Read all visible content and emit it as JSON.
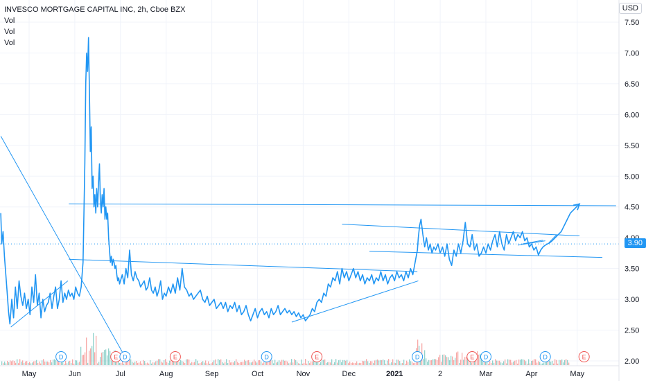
{
  "legend": {
    "title": "INVESCO MORTGAGE CAPITAL INC, 2h, Cboe BZX",
    "lines": [
      "Vol",
      "Vol",
      "Vol"
    ]
  },
  "currency": "USD",
  "last_price": "3.90",
  "colors": {
    "price_line": "#2196f3",
    "drawing_line": "#2196f3",
    "vol_up": "#26a69a",
    "vol_down": "#ef5350",
    "div_marker": "#2196f3",
    "earn_marker": "#ef5350",
    "grid": "#f0f3fa",
    "axis_text": "#131722"
  },
  "chart_data": {
    "type": "line",
    "ylim": [
      2.0,
      7.5
    ],
    "yticks": [
      "7.50",
      "7.00",
      "6.50",
      "6.00",
      "5.50",
      "5.00",
      "4.50",
      "4.00",
      "3.50",
      "3.00",
      "2.50",
      "2.00"
    ],
    "xticks": [
      {
        "label": "May",
        "t": 0.0
      },
      {
        "label": "Jun",
        "t": 1.0
      },
      {
        "label": "Jul",
        "t": 2.0
      },
      {
        "label": "Aug",
        "t": 3.0
      },
      {
        "label": "Sep",
        "t": 4.0
      },
      {
        "label": "Oct",
        "t": 5.0
      },
      {
        "label": "Nov",
        "t": 6.0
      },
      {
        "label": "Dec",
        "t": 7.0
      },
      {
        "label": "2021",
        "t": 8.0
      },
      {
        "label": "2",
        "t": 9.0
      },
      {
        "label": "Mar",
        "t": 10.0
      },
      {
        "label": "Apr",
        "t": 11.0
      },
      {
        "label": "May",
        "t": 12.0
      }
    ],
    "series": [
      {
        "points": [
          [
            -0.62,
            4.4
          ],
          [
            -0.6,
            3.9
          ],
          [
            -0.57,
            4.1
          ],
          [
            -0.54,
            3.7
          ],
          [
            -0.51,
            3.4
          ],
          [
            -0.48,
            3.1
          ],
          [
            -0.45,
            2.8
          ],
          [
            -0.42,
            2.6
          ],
          [
            -0.38,
            3.0
          ],
          [
            -0.34,
            2.7
          ],
          [
            -0.3,
            3.2
          ],
          [
            -0.26,
            2.85
          ],
          [
            -0.22,
            3.3
          ],
          [
            -0.18,
            3.05
          ],
          [
            -0.14,
            2.9
          ],
          [
            -0.1,
            3.1
          ],
          [
            -0.06,
            2.85
          ],
          [
            -0.02,
            3.0
          ],
          [
            0.02,
            2.75
          ],
          [
            0.06,
            3.2
          ],
          [
            0.1,
            2.95
          ],
          [
            0.14,
            3.4
          ],
          [
            0.18,
            2.9
          ],
          [
            0.22,
            3.1
          ],
          [
            0.26,
            2.7
          ],
          [
            0.3,
            3.0
          ],
          [
            0.34,
            2.8
          ],
          [
            0.38,
            2.9
          ],
          [
            0.42,
            2.95
          ],
          [
            0.46,
            3.1
          ],
          [
            0.5,
            2.85
          ],
          [
            0.54,
            3.05
          ],
          [
            0.58,
            3.2
          ],
          [
            0.62,
            2.85
          ],
          [
            0.66,
            3.0
          ],
          [
            0.7,
            3.3
          ],
          [
            0.74,
            2.95
          ],
          [
            0.78,
            3.1
          ],
          [
            0.82,
            3.0
          ],
          [
            0.86,
            3.15
          ],
          [
            0.9,
            3.05
          ],
          [
            0.94,
            3.1
          ],
          [
            0.98,
            3.0
          ],
          [
            1.02,
            3.2
          ],
          [
            1.06,
            3.1
          ],
          [
            1.1,
            3.05
          ],
          [
            1.14,
            3.2
          ],
          [
            1.18,
            3.6
          ],
          [
            1.2,
            4.4
          ],
          [
            1.22,
            5.2
          ],
          [
            1.24,
            6.5
          ],
          [
            1.26,
            7.0
          ],
          [
            1.28,
            6.7
          ],
          [
            1.3,
            7.25
          ],
          [
            1.32,
            6.4
          ],
          [
            1.34,
            5.4
          ],
          [
            1.36,
            5.8
          ],
          [
            1.38,
            4.8
          ],
          [
            1.4,
            5.0
          ],
          [
            1.42,
            4.5
          ],
          [
            1.44,
            4.7
          ],
          [
            1.46,
            4.4
          ],
          [
            1.48,
            4.8
          ],
          [
            1.5,
            4.5
          ],
          [
            1.52,
            4.9
          ],
          [
            1.54,
            5.2
          ],
          [
            1.56,
            4.6
          ],
          [
            1.58,
            4.4
          ],
          [
            1.6,
            4.7
          ],
          [
            1.62,
            4.5
          ],
          [
            1.64,
            4.8
          ],
          [
            1.66,
            4.3
          ],
          [
            1.68,
            4.5
          ],
          [
            1.7,
            4.3
          ],
          [
            1.72,
            4.4
          ],
          [
            1.74,
            4.0
          ],
          [
            1.76,
            3.8
          ],
          [
            1.78,
            3.6
          ],
          [
            1.8,
            3.7
          ],
          [
            1.82,
            3.55
          ],
          [
            1.84,
            3.65
          ],
          [
            1.86,
            3.6
          ],
          [
            1.88,
            3.5
          ],
          [
            1.9,
            3.55
          ],
          [
            1.92,
            3.4
          ],
          [
            1.94,
            3.3
          ],
          [
            1.96,
            3.35
          ],
          [
            1.98,
            3.25
          ],
          [
            2.0,
            3.3
          ],
          [
            2.04,
            3.4
          ],
          [
            2.08,
            3.25
          ],
          [
            2.12,
            3.5
          ],
          [
            2.16,
            3.35
          ],
          [
            2.2,
            3.8
          ],
          [
            2.24,
            3.4
          ],
          [
            2.28,
            3.3
          ],
          [
            2.32,
            3.45
          ],
          [
            2.36,
            3.35
          ],
          [
            2.4,
            3.3
          ],
          [
            2.44,
            3.2
          ],
          [
            2.48,
            3.25
          ],
          [
            2.52,
            3.3
          ],
          [
            2.56,
            3.15
          ],
          [
            2.6,
            3.2
          ],
          [
            2.64,
            3.35
          ],
          [
            2.68,
            3.15
          ],
          [
            2.72,
            3.1
          ],
          [
            2.76,
            3.2
          ],
          [
            2.8,
            3.05
          ],
          [
            2.84,
            3.15
          ],
          [
            2.88,
            3.3
          ],
          [
            2.92,
            3.0
          ],
          [
            2.96,
            3.1
          ],
          [
            3.0,
            3.05
          ],
          [
            3.05,
            3.2
          ],
          [
            3.1,
            3.1
          ],
          [
            3.15,
            3.25
          ],
          [
            3.2,
            3.1
          ],
          [
            3.25,
            3.35
          ],
          [
            3.3,
            3.15
          ],
          [
            3.35,
            3.5
          ],
          [
            3.4,
            3.2
          ],
          [
            3.45,
            3.15
          ],
          [
            3.5,
            3.05
          ],
          [
            3.55,
            3.1
          ],
          [
            3.6,
            3.0
          ],
          [
            3.65,
            3.05
          ],
          [
            3.7,
            3.1
          ],
          [
            3.75,
            3.15
          ],
          [
            3.8,
            3.0
          ],
          [
            3.85,
            2.95
          ],
          [
            3.9,
            3.05
          ],
          [
            3.95,
            2.9
          ],
          [
            4.0,
            2.95
          ],
          [
            4.05,
            3.0
          ],
          [
            4.1,
            2.85
          ],
          [
            4.15,
            2.9
          ],
          [
            4.2,
            2.95
          ],
          [
            4.25,
            2.85
          ],
          [
            4.3,
            2.95
          ],
          [
            4.35,
            2.8
          ],
          [
            4.4,
            2.9
          ],
          [
            4.45,
            2.85
          ],
          [
            4.5,
            2.95
          ],
          [
            4.55,
            2.8
          ],
          [
            4.6,
            2.9
          ],
          [
            4.65,
            2.75
          ],
          [
            4.7,
            2.8
          ],
          [
            4.75,
            2.9
          ],
          [
            4.8,
            2.75
          ],
          [
            4.85,
            2.65
          ],
          [
            4.9,
            2.75
          ],
          [
            4.95,
            2.85
          ],
          [
            5.0,
            2.7
          ],
          [
            5.05,
            2.8
          ],
          [
            5.1,
            2.85
          ],
          [
            5.15,
            2.75
          ],
          [
            5.2,
            2.8
          ],
          [
            5.25,
            2.7
          ],
          [
            5.3,
            2.85
          ],
          [
            5.35,
            2.75
          ],
          [
            5.4,
            2.8
          ],
          [
            5.45,
            2.9
          ],
          [
            5.5,
            2.75
          ],
          [
            5.55,
            2.8
          ],
          [
            5.6,
            2.85
          ],
          [
            5.65,
            2.78
          ],
          [
            5.7,
            2.82
          ],
          [
            5.75,
            2.75
          ],
          [
            5.8,
            2.8
          ],
          [
            5.85,
            2.72
          ],
          [
            5.9,
            2.78
          ],
          [
            5.95,
            2.7
          ],
          [
            6.0,
            2.75
          ],
          [
            6.05,
            2.65
          ],
          [
            6.1,
            2.7
          ],
          [
            6.15,
            2.75
          ],
          [
            6.2,
            2.85
          ],
          [
            6.25,
            2.8
          ],
          [
            6.3,
            2.95
          ],
          [
            6.35,
            3.0
          ],
          [
            6.4,
            2.95
          ],
          [
            6.45,
            3.1
          ],
          [
            6.5,
            3.05
          ],
          [
            6.55,
            3.25
          ],
          [
            6.6,
            3.2
          ],
          [
            6.65,
            3.35
          ],
          [
            6.7,
            3.3
          ],
          [
            6.75,
            3.45
          ],
          [
            6.8,
            3.25
          ],
          [
            6.85,
            3.5
          ],
          [
            6.9,
            3.35
          ],
          [
            6.95,
            3.45
          ],
          [
            7.0,
            3.3
          ],
          [
            7.05,
            3.4
          ],
          [
            7.1,
            3.5
          ],
          [
            7.15,
            3.35
          ],
          [
            7.2,
            3.45
          ],
          [
            7.25,
            3.3
          ],
          [
            7.3,
            3.4
          ],
          [
            7.35,
            3.25
          ],
          [
            7.4,
            3.35
          ],
          [
            7.45,
            3.3
          ],
          [
            7.5,
            3.4
          ],
          [
            7.55,
            3.25
          ],
          [
            7.6,
            3.35
          ],
          [
            7.65,
            3.3
          ],
          [
            7.7,
            3.45
          ],
          [
            7.75,
            3.3
          ],
          [
            7.8,
            3.4
          ],
          [
            7.85,
            3.25
          ],
          [
            7.9,
            3.35
          ],
          [
            7.95,
            3.4
          ],
          [
            8.0,
            3.3
          ],
          [
            8.05,
            3.45
          ],
          [
            8.1,
            3.35
          ],
          [
            8.15,
            3.4
          ],
          [
            8.2,
            3.3
          ],
          [
            8.25,
            3.45
          ],
          [
            8.3,
            3.35
          ],
          [
            8.35,
            3.5
          ],
          [
            8.4,
            3.4
          ],
          [
            8.45,
            3.6
          ],
          [
            8.5,
            3.8
          ],
          [
            8.52,
            4.0
          ],
          [
            8.55,
            4.2
          ],
          [
            8.58,
            4.3
          ],
          [
            8.62,
            4.05
          ],
          [
            8.66,
            3.85
          ],
          [
            8.7,
            4.0
          ],
          [
            8.74,
            3.8
          ],
          [
            8.78,
            3.9
          ],
          [
            8.82,
            3.75
          ],
          [
            8.86,
            3.85
          ],
          [
            8.9,
            3.8
          ],
          [
            8.95,
            3.9
          ],
          [
            9.0,
            3.75
          ],
          [
            9.05,
            3.85
          ],
          [
            9.1,
            3.7
          ],
          [
            9.15,
            3.9
          ],
          [
            9.2,
            3.65
          ],
          [
            9.25,
            3.55
          ],
          [
            9.3,
            3.8
          ],
          [
            9.35,
            3.7
          ],
          [
            9.4,
            3.9
          ],
          [
            9.45,
            3.75
          ],
          [
            9.5,
            3.95
          ],
          [
            9.55,
            4.25
          ],
          [
            9.6,
            3.9
          ],
          [
            9.65,
            3.85
          ],
          [
            9.7,
            4.05
          ],
          [
            9.75,
            3.8
          ],
          [
            9.8,
            3.9
          ],
          [
            9.85,
            3.7
          ],
          [
            9.9,
            3.75
          ],
          [
            9.95,
            3.85
          ],
          [
            10.0,
            3.75
          ],
          [
            10.05,
            3.9
          ],
          [
            10.1,
            3.8
          ],
          [
            10.15,
            3.95
          ],
          [
            10.2,
            4.05
          ],
          [
            10.25,
            3.85
          ],
          [
            10.3,
            4.1
          ],
          [
            10.35,
            3.9
          ],
          [
            10.4,
            3.8
          ],
          [
            10.45,
            4.05
          ],
          [
            10.5,
            3.9
          ],
          [
            10.55,
            4.0
          ],
          [
            10.6,
            4.1
          ],
          [
            10.65,
            3.95
          ],
          [
            10.7,
            4.05
          ],
          [
            10.75,
            4.0
          ],
          [
            10.8,
            4.1
          ],
          [
            10.85,
            3.95
          ],
          [
            10.9,
            4.0
          ],
          [
            10.95,
            3.85
          ],
          [
            11.0,
            3.9
          ],
          [
            11.05,
            3.8
          ],
          [
            11.1,
            3.85
          ],
          [
            11.15,
            3.72
          ],
          [
            11.2,
            3.8
          ],
          [
            11.25,
            3.85
          ],
          [
            11.3,
            3.88
          ],
          [
            11.35,
            3.9
          ],
          [
            11.4,
            3.92
          ],
          [
            11.45,
            3.95
          ]
        ]
      }
    ]
  }
}
